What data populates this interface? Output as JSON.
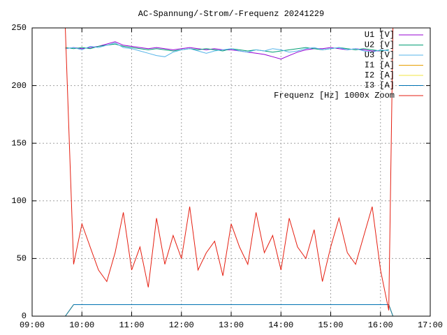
{
  "chart_data": {
    "type": "line",
    "title": "AC-Spannung/-Strom/-Frequenz 20241229",
    "x": [
      "09:35",
      "09:40",
      "09:50",
      "10:00",
      "10:10",
      "10:20",
      "10:30",
      "10:40",
      "10:50",
      "11:00",
      "11:10",
      "11:20",
      "11:30",
      "11:40",
      "11:50",
      "12:00",
      "12:10",
      "12:20",
      "12:30",
      "12:40",
      "12:50",
      "13:00",
      "13:10",
      "13:20",
      "13:30",
      "13:40",
      "13:50",
      "14:00",
      "14:10",
      "14:20",
      "14:30",
      "14:40",
      "14:50",
      "15:00",
      "15:10",
      "15:20",
      "15:30",
      "15:40",
      "15:50",
      "16:00",
      "16:10",
      "16:15"
    ],
    "xlim": [
      "09:00",
      "17:00"
    ],
    "xticks": [
      "09:00",
      "10:00",
      "11:00",
      "12:00",
      "13:00",
      "14:00",
      "15:00",
      "16:00",
      "17:00"
    ],
    "ylim": [
      0,
      250
    ],
    "yticks": [
      0,
      50,
      100,
      150,
      200,
      250
    ],
    "grid": true,
    "legend": "top-right",
    "series": [
      {
        "name": "U1 [V]",
        "color": "#9400d3",
        "values": [
          null,
          232,
          233,
          232,
          233,
          234,
          236,
          238,
          235,
          234,
          233,
          232,
          233,
          232,
          231,
          232,
          233,
          232,
          231,
          232,
          231,
          231,
          230,
          229,
          228,
          227,
          225,
          223,
          226,
          229,
          231,
          232,
          232,
          233,
          232,
          231,
          232,
          231,
          230,
          230,
          231,
          null
        ]
      },
      {
        "name": "U2 [V]",
        "color": "#009e73",
        "values": [
          null,
          233,
          232,
          233,
          232,
          234,
          235,
          236,
          234,
          233,
          232,
          231,
          232,
          231,
          230,
          231,
          232,
          231,
          232,
          231,
          230,
          232,
          231,
          230,
          231,
          230,
          229,
          230,
          231,
          232,
          233,
          232,
          231,
          232,
          233,
          232,
          231,
          232,
          231,
          230,
          231,
          null
        ]
      },
      {
        "name": "U3 [V]",
        "color": "#56b4e9",
        "values": [
          null,
          232,
          233,
          231,
          234,
          233,
          235,
          237,
          233,
          232,
          230,
          228,
          226,
          225,
          229,
          231,
          232,
          230,
          228,
          230,
          231,
          232,
          230,
          229,
          231,
          230,
          232,
          231,
          229,
          230,
          232,
          233,
          231,
          232,
          233,
          231,
          232,
          230,
          229,
          231,
          230,
          null
        ]
      },
      {
        "name": "I1 [A]",
        "color": "#e69f00",
        "values": [
          0,
          0,
          10,
          10,
          10,
          10,
          10,
          10,
          10,
          10,
          10,
          10,
          10,
          10,
          10,
          10,
          10,
          10,
          10,
          10,
          10,
          10,
          10,
          10,
          10,
          10,
          10,
          10,
          10,
          10,
          10,
          10,
          10,
          10,
          10,
          10,
          10,
          10,
          10,
          10,
          10,
          0
        ]
      },
      {
        "name": "I2 [A]",
        "color": "#f0e442",
        "values": [
          0,
          0,
          10,
          10,
          10,
          10,
          10,
          10,
          10,
          10,
          10,
          10,
          10,
          10,
          10,
          10,
          10,
          10,
          10,
          10,
          10,
          10,
          10,
          10,
          10,
          10,
          10,
          10,
          10,
          10,
          10,
          10,
          10,
          10,
          10,
          10,
          10,
          10,
          10,
          10,
          10,
          0
        ]
      },
      {
        "name": "I3 [A]",
        "color": "#0072b2",
        "values": [
          0,
          0,
          10,
          10,
          10,
          10,
          10,
          10,
          10,
          10,
          10,
          10,
          10,
          10,
          10,
          10,
          10,
          10,
          10,
          10,
          10,
          10,
          10,
          10,
          10,
          10,
          10,
          10,
          10,
          10,
          10,
          10,
          10,
          10,
          10,
          10,
          10,
          10,
          10,
          10,
          10,
          0
        ]
      },
      {
        "name": "Frequenz [Hz] 1000x Zoom",
        "color": "#e51e10",
        "values": [
          null,
          250,
          45,
          80,
          60,
          40,
          30,
          55,
          90,
          40,
          60,
          25,
          85,
          45,
          70,
          50,
          95,
          40,
          55,
          65,
          35,
          80,
          60,
          45,
          90,
          55,
          70,
          40,
          85,
          60,
          50,
          75,
          30,
          60,
          85,
          55,
          45,
          70,
          95,
          40,
          5,
          250
        ]
      }
    ]
  }
}
